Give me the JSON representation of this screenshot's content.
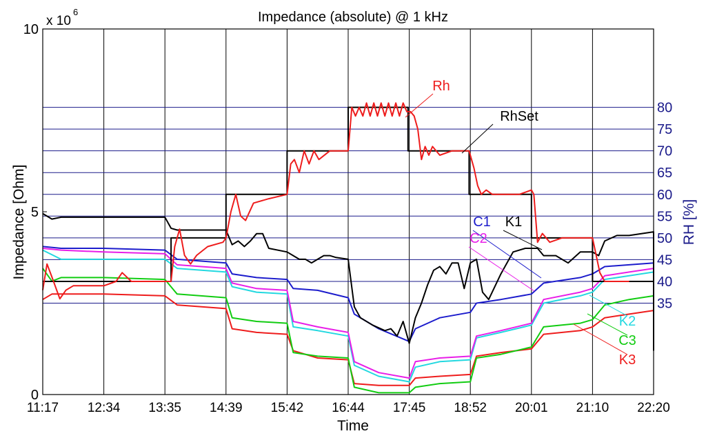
{
  "chart_data": {
    "type": "line",
    "title": "Impedance (absolute) @ 1 kHz",
    "xlabel": "Time",
    "ylabel": "Impedance [Ohm]",
    "y2label": "RH [%]",
    "y_multiplier_label": "x 10",
    "y_multiplier_exp": "6",
    "x_ticks": [
      "11:17",
      "12:34",
      "13:35",
      "14:39",
      "15:42",
      "16:44",
      "17:45",
      "18:52",
      "20:01",
      "21:10",
      "22:20"
    ],
    "ylim": [
      0,
      10
    ],
    "y_ticks": [
      "0",
      "5",
      "10"
    ],
    "y2lim": [
      14,
      98
    ],
    "y2_ticks": [
      "35",
      "40",
      "45",
      "50",
      "55",
      "60",
      "65",
      "70",
      "75",
      "80"
    ],
    "grid": true,
    "colors": {
      "Rh": "#ee1c1c",
      "RhSet": "#000000",
      "K1": "#000000",
      "C1": "#1c1ccc",
      "C2": "#e81ee8",
      "K2": "#22d8e0",
      "C3": "#11cc11",
      "K3": "#ee1c1c",
      "grid_h": "#1a1a8a",
      "grid_v": "#000000"
    },
    "series": [
      {
        "name": "RhSet",
        "axis": "right",
        "x": [
          0,
          2.1,
          2.1,
          3,
          3,
          4,
          4,
          5,
          5,
          5.98,
          5.98,
          6.98,
          6.98,
          8.0,
          8.0,
          9.0,
          9.0,
          10.0
        ],
        "values": [
          40,
          40,
          50,
          50,
          60,
          60,
          70,
          70,
          80,
          80,
          70,
          70,
          60,
          60,
          50,
          50,
          40,
          40
        ]
      },
      {
        "name": "Rh",
        "axis": "right",
        "x": [
          0.0,
          0.07,
          0.15,
          0.28,
          0.38,
          0.5,
          0.7,
          1.0,
          1.2,
          1.3,
          1.45,
          1.7,
          2.0,
          2.1,
          2.16,
          2.24,
          2.32,
          2.42,
          2.52,
          2.7,
          2.95,
          3.0,
          3.08,
          3.16,
          3.24,
          3.32,
          3.45,
          3.7,
          4.0,
          4.06,
          4.12,
          4.2,
          4.28,
          4.36,
          4.44,
          4.52,
          4.7,
          5.0,
          5.06,
          5.12,
          5.18,
          5.24,
          5.3,
          5.36,
          5.42,
          5.48,
          5.54,
          5.6,
          5.66,
          5.72,
          5.78,
          5.84,
          5.9,
          5.96,
          6.02,
          6.08,
          6.14,
          6.2,
          6.26,
          6.32,
          6.38,
          6.5,
          6.7,
          6.98,
          7.06,
          7.12,
          7.18,
          7.26,
          7.36,
          7.5,
          7.8,
          8.0,
          8.04,
          8.1,
          8.18,
          8.3,
          8.5,
          8.8,
          9.0,
          9.06,
          9.12,
          9.2,
          9.3,
          9.45,
          9.6
        ],
        "values": [
          38,
          44,
          41,
          36,
          38,
          39,
          39,
          39,
          40,
          42,
          40,
          40,
          40,
          40,
          48,
          52,
          46,
          44,
          46,
          48,
          49,
          50,
          56,
          60,
          55,
          54,
          58,
          59,
          60,
          67,
          68,
          65,
          70,
          67,
          70,
          68,
          70,
          70,
          80,
          78,
          80,
          78,
          81,
          78,
          81,
          78,
          81,
          78,
          81,
          78,
          81,
          78,
          81,
          79,
          79,
          78,
          75,
          68,
          71,
          69,
          71,
          69,
          70,
          70,
          66,
          62,
          60,
          61,
          60,
          60,
          60,
          61,
          60,
          49,
          51,
          49,
          50,
          50,
          50,
          46,
          42,
          40,
          40,
          40,
          40
        ]
      },
      {
        "name": "K1",
        "axis": "left",
        "x": [
          0,
          0.15,
          0.3,
          0.6,
          1.0,
          1.5,
          2.0,
          2.1,
          2.2,
          2.5,
          3.0,
          3.1,
          3.2,
          3.3,
          3.4,
          3.5,
          3.6,
          3.7,
          4.0,
          4.1,
          4.2,
          4.3,
          4.4,
          4.5,
          4.6,
          4.7,
          4.8,
          5.0,
          5.1,
          5.2,
          5.4,
          5.6,
          5.7,
          5.8,
          5.9,
          6.0,
          6.1,
          6.2,
          6.3,
          6.4,
          6.5,
          6.6,
          6.7,
          6.8,
          6.9,
          7.0,
          7.1,
          7.2,
          7.3,
          7.5,
          7.7,
          7.9,
          8.0,
          8.1,
          8.2,
          8.4,
          8.6,
          8.8,
          9.0,
          9.1,
          9.2,
          9.4,
          9.6,
          9.8,
          10.0,
          10.0
        ],
        "values": [
          4.95,
          4.8,
          4.85,
          4.85,
          4.85,
          4.85,
          4.85,
          4.55,
          4.5,
          4.5,
          4.5,
          4.1,
          4.2,
          4.05,
          4.2,
          4.4,
          4.4,
          4.0,
          3.9,
          3.8,
          3.7,
          3.7,
          3.6,
          3.7,
          3.8,
          3.8,
          3.75,
          3.7,
          2.4,
          2.1,
          1.9,
          1.75,
          1.8,
          1.6,
          2.0,
          1.4,
          2.1,
          2.5,
          3.0,
          3.4,
          3.5,
          3.3,
          3.6,
          3.6,
          2.9,
          3.6,
          3.7,
          2.8,
          2.6,
          3.3,
          3.9,
          4.0,
          4.0,
          4.0,
          3.8,
          3.8,
          3.6,
          3.9,
          3.9,
          3.8,
          4.2,
          4.35,
          4.35,
          4.4,
          4.45,
          1.2
        ]
      },
      {
        "name": "C1",
        "axis": "left",
        "x": [
          0,
          0.3,
          1.0,
          2.0,
          2.2,
          3.0,
          3.1,
          3.5,
          4.0,
          4.1,
          4.5,
          5.0,
          5.1,
          5.5,
          6.0,
          6.1,
          6.5,
          7.0,
          7.1,
          7.5,
          8.0,
          8.2,
          8.8,
          9.0,
          9.2,
          9.6,
          10.0
        ],
        "values": [
          4.05,
          4.0,
          4.0,
          3.95,
          3.7,
          3.6,
          3.3,
          3.2,
          3.15,
          2.9,
          2.85,
          2.65,
          2.2,
          1.8,
          1.45,
          1.8,
          2.1,
          2.25,
          2.5,
          2.6,
          2.75,
          3.05,
          3.2,
          3.3,
          3.5,
          3.55,
          3.6
        ]
      },
      {
        "name": "C2",
        "axis": "left",
        "x": [
          0,
          0.3,
          1.0,
          2.0,
          2.2,
          3.0,
          3.1,
          3.5,
          4.0,
          4.1,
          4.5,
          5.0,
          5.1,
          5.5,
          6.0,
          6.1,
          6.5,
          7.0,
          7.1,
          7.5,
          8.0,
          8.2,
          8.8,
          9.0,
          9.2,
          9.6,
          10.0
        ],
        "values": [
          4.0,
          3.95,
          3.9,
          3.85,
          3.55,
          3.45,
          3.05,
          2.9,
          2.85,
          2.0,
          1.85,
          1.7,
          0.9,
          0.6,
          0.45,
          0.9,
          1.0,
          1.05,
          1.6,
          1.75,
          1.95,
          2.6,
          2.8,
          2.9,
          3.25,
          3.35,
          3.45
        ]
      },
      {
        "name": "K2",
        "axis": "left",
        "x": [
          0,
          0.3,
          1.0,
          2.0,
          2.2,
          3.0,
          3.1,
          3.5,
          4.0,
          4.1,
          4.5,
          5.0,
          5.1,
          5.5,
          6.0,
          6.1,
          6.5,
          7.0,
          7.1,
          7.5,
          8.0,
          8.2,
          8.8,
          9.0,
          9.2,
          9.6,
          10.0
        ],
        "values": [
          3.95,
          3.7,
          3.7,
          3.7,
          3.45,
          3.35,
          2.95,
          2.8,
          2.75,
          1.85,
          1.75,
          1.6,
          0.8,
          0.5,
          0.35,
          0.75,
          0.9,
          0.95,
          1.55,
          1.7,
          1.9,
          2.5,
          2.7,
          2.8,
          3.15,
          3.25,
          3.35
        ]
      },
      {
        "name": "C3",
        "axis": "left",
        "x": [
          0,
          0.15,
          0.3,
          1.0,
          2.0,
          2.2,
          3.0,
          3.1,
          3.5,
          4.0,
          4.1,
          4.5,
          5.0,
          5.1,
          5.5,
          6.0,
          6.1,
          6.5,
          7.0,
          7.1,
          7.5,
          8.0,
          8.2,
          8.8,
          9.0,
          9.2,
          9.6,
          10.0
        ],
        "values": [
          3.45,
          3.1,
          3.2,
          3.2,
          3.15,
          2.75,
          2.65,
          2.1,
          2.0,
          1.95,
          1.15,
          1.05,
          1.0,
          0.2,
          0.05,
          0.05,
          0.2,
          0.3,
          0.35,
          1.0,
          1.1,
          1.3,
          1.85,
          1.95,
          2.05,
          2.45,
          2.6,
          2.7
        ]
      },
      {
        "name": "K3",
        "axis": "left",
        "x": [
          0,
          0.15,
          0.3,
          1.0,
          2.0,
          2.2,
          3.0,
          3.1,
          3.5,
          4.0,
          4.1,
          4.5,
          5.0,
          5.1,
          5.5,
          6.0,
          6.1,
          6.5,
          7.0,
          7.1,
          7.5,
          8.0,
          8.2,
          8.8,
          9.0,
          9.2,
          9.6,
          10.0
        ],
        "values": [
          2.6,
          2.75,
          2.75,
          2.75,
          2.7,
          2.45,
          2.35,
          1.8,
          1.7,
          1.65,
          1.2,
          1.0,
          0.95,
          0.3,
          0.25,
          0.25,
          0.45,
          0.5,
          0.55,
          1.05,
          1.15,
          1.25,
          1.65,
          1.75,
          1.85,
          2.1,
          2.2,
          2.3
        ]
      }
    ],
    "annotations": [
      {
        "text": "Rh",
        "series": "Rh"
      },
      {
        "text": "RhSet",
        "series": "RhSet"
      },
      {
        "text": "C1",
        "series": "C1"
      },
      {
        "text": "K1",
        "series": "K1"
      },
      {
        "text": "C2",
        "series": "C2"
      },
      {
        "text": "K2",
        "series": "K2"
      },
      {
        "text": "C3",
        "series": "C3"
      },
      {
        "text": "K3",
        "series": "K3"
      }
    ]
  }
}
